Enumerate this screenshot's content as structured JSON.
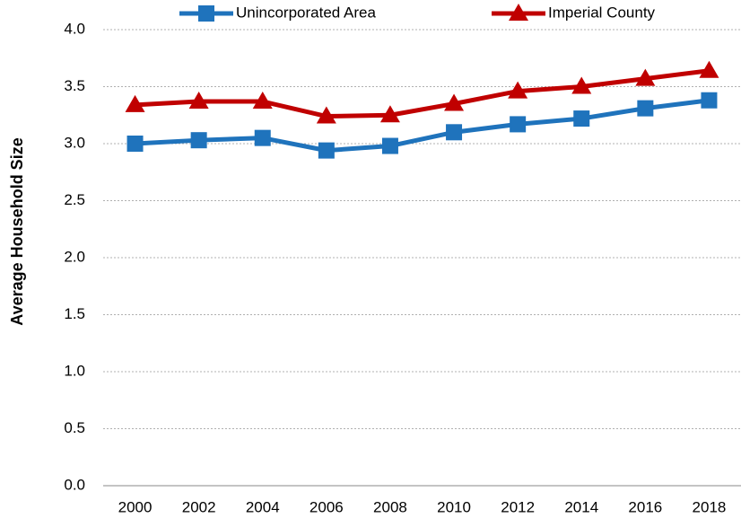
{
  "chart_data": {
    "type": "line",
    "y_label": "Average Household Size",
    "categories": [
      "2000",
      "2002",
      "2004",
      "2006",
      "2008",
      "2010",
      "2012",
      "2014",
      "2016",
      "2018"
    ],
    "series": [
      {
        "name": "Unincorporated Area",
        "color": "#1f73bc",
        "marker": "square",
        "values": [
          3.0,
          3.03,
          3.05,
          2.94,
          2.98,
          3.1,
          3.17,
          3.22,
          3.31,
          3.38
        ]
      },
      {
        "name": "Imperial County",
        "color": "#c00000",
        "marker": "triangle",
        "values": [
          3.34,
          3.37,
          3.37,
          3.24,
          3.25,
          3.35,
          3.46,
          3.5,
          3.57,
          3.64
        ]
      }
    ],
    "ylim": [
      0,
      4.0
    ],
    "yticks": [
      {
        "value": 0,
        "label": "0.0"
      },
      0.5,
      {
        "value": 1,
        "label": "1.0"
      },
      1.5,
      {
        "value": 2,
        "label": "2.0"
      },
      2.5,
      {
        "value": 3,
        "label": "3.0"
      },
      3.5,
      {
        "value": 4,
        "label": "4.0"
      }
    ],
    "grid": true,
    "legend": "top"
  }
}
